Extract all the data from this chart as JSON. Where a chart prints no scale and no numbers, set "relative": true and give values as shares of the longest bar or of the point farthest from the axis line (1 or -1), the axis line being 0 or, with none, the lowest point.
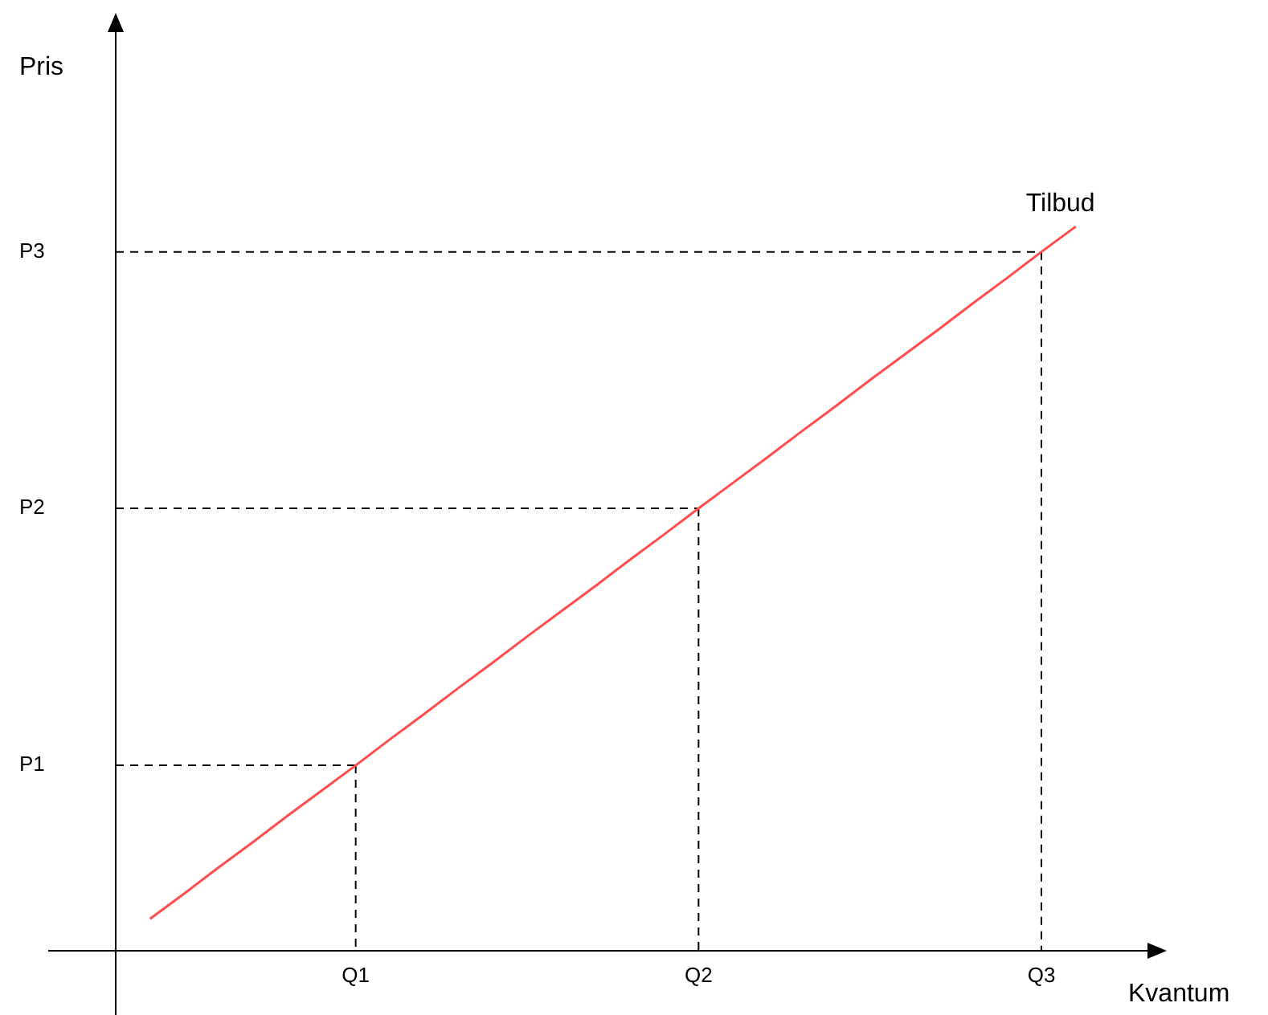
{
  "chart_data": {
    "type": "line",
    "xlabel": "Kvantum",
    "relative": true,
    "marker": "none",
    "categories": [
      null,
      null,
      null,
      null,
      null,
      null,
      null,
      "Q1",
      null,
      null,
      null,
      null,
      null,
      null,
      null,
      null,
      null,
      "Q2",
      null,
      null,
      null,
      null,
      null,
      null,
      null,
      null,
      null,
      "Q3",
      null,
      null,
      null
    ],
    "series": [
      {
        "name": "Tilbud",
        "color": "#ff4d4d",
        "values": [
          null,
          0.044,
          0.079,
          0.115,
          0.15,
          0.186,
          0.221,
          0.256,
          0.292,
          0.327,
          0.363,
          0.398,
          0.434,
          0.469,
          0.504,
          0.54,
          0.575,
          0.611,
          0.646,
          0.681,
          0.717,
          0.752,
          0.788,
          0.823,
          0.858,
          0.894,
          0.929,
          0.965,
          1.0,
          null,
          null
        ]
      },
      {
        "color": "#000000",
        "line_style": "dashed",
        "values": [
          0.256,
          0.256,
          0.256,
          0.256,
          0.256,
          0.256,
          0.256,
          0.256,
          null,
          null,
          null,
          null,
          null,
          null,
          null,
          null,
          null,
          null,
          null,
          null,
          null,
          null,
          null,
          null,
          null,
          null,
          null,
          null,
          null,
          null,
          null
        ]
      },
      {
        "color": "#000000",
        "line_style": "dashed",
        "values": [
          0.611,
          0.611,
          0.611,
          0.611,
          0.611,
          0.611,
          0.611,
          0.611,
          0.611,
          0.611,
          0.611,
          0.611,
          0.611,
          0.611,
          0.611,
          0.611,
          0.611,
          0.611,
          null,
          null,
          null,
          null,
          null,
          null,
          null,
          null,
          null,
          null,
          null,
          null,
          null
        ]
      },
      {
        "color": "#000000",
        "line_style": "dashed",
        "values": [
          0.965,
          0.965,
          0.965,
          0.965,
          0.965,
          0.965,
          0.965,
          0.965,
          0.965,
          0.965,
          0.965,
          0.965,
          0.965,
          0.965,
          0.965,
          0.965,
          0.965,
          0.965,
          0.965,
          0.965,
          0.965,
          0.965,
          0.965,
          0.965,
          0.965,
          0.965,
          0.965,
          0.965,
          null,
          null,
          null
        ]
      },
      {
        "color": "#000000",
        "line_style": "dashed",
        "x": [
          "Q1",
          "Q1"
        ],
        "values": [
          0.256,
          0
        ]
      },
      {
        "color": "#000000",
        "line_style": "dashed",
        "x": [
          "Q2",
          "Q2"
        ],
        "values": [
          0.611,
          0
        ]
      },
      {
        "color": "#000000",
        "line_style": "dashed",
        "x": [
          "Q3",
          "Q3"
        ],
        "values": [
          0.965,
          0
        ]
      }
    ],
    "annotations": [
      "P1",
      "P2",
      "P3",
      "Pris"
    ]
  }
}
